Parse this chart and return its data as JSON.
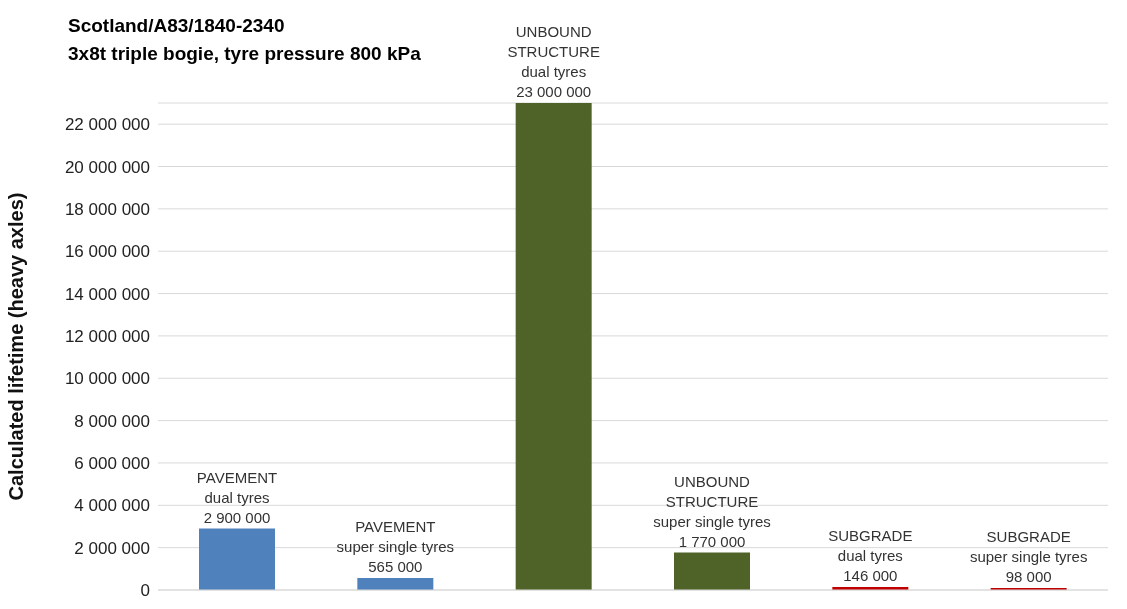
{
  "chart_data": {
    "type": "bar",
    "title": "Scotland/A83/1840-2340",
    "subtitle": "3x8t triple bogie, tyre pressure 800 kPa",
    "ylabel": "Calculated  lifetime  (heavy axles)",
    "categories": [
      null,
      null,
      null,
      null,
      null,
      null
    ],
    "values": [
      2900000,
      565000,
      23000000,
      1770000,
      146000,
      98000
    ],
    "colors": [
      "#4f81bd",
      "#4f81bd",
      "#4f6228",
      "#4f6228",
      "#c00000",
      "#c00000"
    ],
    "value_labels": [
      "PAVEMENT\ndual tyres\n2 900 000",
      "PAVEMENT\nsuper single tyres\n565 000",
      "UNBOUND\nSTRUCTURE\ndual tyres\n23 000 000",
      "UNBOUND\nSTRUCTURE\nsuper single tyres\n1 770 000",
      "SUBGRADE\ndual tyres\n146 000",
      "SUBGRADE\nsuper single tyres\n98 000"
    ],
    "ylim": [
      0,
      23000000
    ],
    "yticks": [
      {
        "value": 0,
        "label": "0"
      },
      {
        "value": 2000000,
        "label": "2 000 000"
      },
      {
        "value": 4000000,
        "label": "4 000 000"
      },
      {
        "value": 6000000,
        "label": "6 000 000"
      },
      {
        "value": 8000000,
        "label": "8 000 000"
      },
      {
        "value": 10000000,
        "label": "10 000 000"
      },
      {
        "value": 12000000,
        "label": "12 000 000"
      },
      {
        "value": 14000000,
        "label": "14 000 000"
      },
      {
        "value": 16000000,
        "label": "16 000 000"
      },
      {
        "value": 18000000,
        "label": "18 000 000"
      },
      {
        "value": 20000000,
        "label": "20 000 000"
      },
      {
        "value": 22000000,
        "label": "22 000 000"
      }
    ],
    "grid": "y",
    "legend": false,
    "tick_labels": "y"
  }
}
